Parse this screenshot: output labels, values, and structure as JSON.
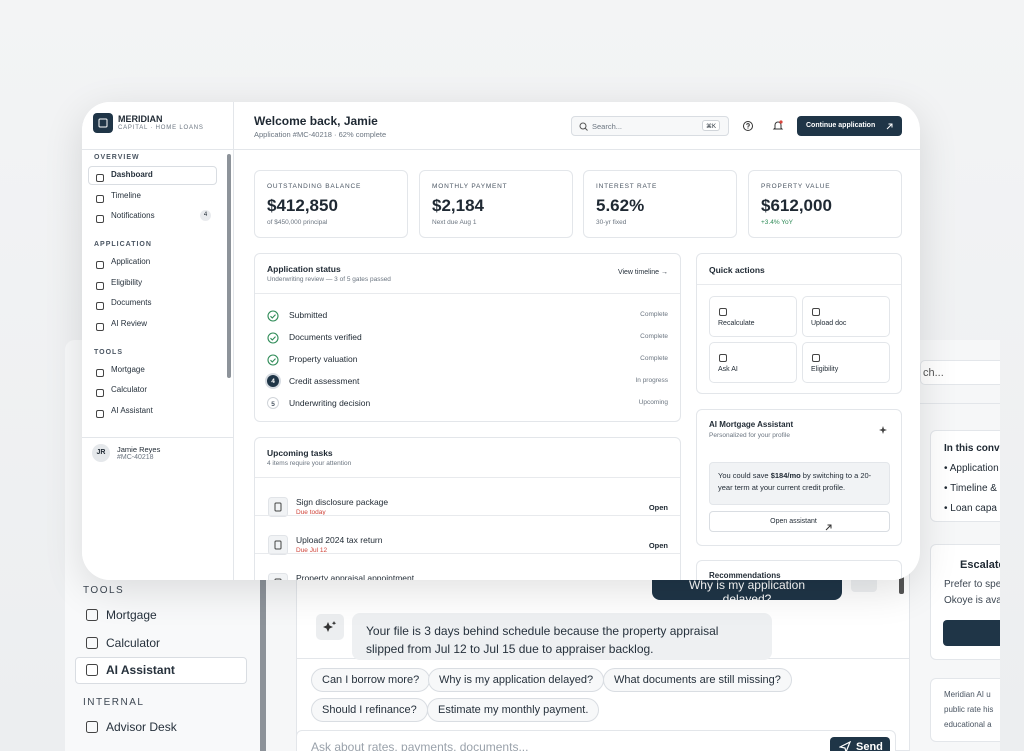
{
  "background_window": {
    "sidebar": [
      {
        "title": "TOOLS",
        "items": [
          "Mortgage",
          "Calculator",
          "AI Assistant"
        ]
      },
      {
        "title": "INTERNAL",
        "items": [
          "Advisor Desk"
        ]
      }
    ],
    "search_placeholder": "ch...",
    "chat": {
      "user_message": "Why is my application delayed?",
      "ai_message": "Your file is 3 days behind schedule because the property appraisal slipped from Jul 12 to Jul 15 due to appraiser backlog.",
      "suggestions": [
        [
          "Can I borrow more?",
          "Why is my application delayed?",
          "What documents are still missing?"
        ],
        [
          "Should I refinance?",
          "Estimate my monthly payment."
        ]
      ],
      "input_placeholder": "Ask about rates, payments, documents...",
      "send": "Send"
    },
    "side_panel": {
      "context_title": "In this conve",
      "context_items": [
        "Application",
        "Timeline &",
        "Loan capa"
      ],
      "escalate_title": "Escalate",
      "escalate_text": [
        "Prefer to spe",
        "Okoye is ava"
      ],
      "disclaimer": [
        "Meridian AI u",
        "public rate his",
        "educational a"
      ]
    }
  },
  "app": {
    "brand": {
      "name": "MERIDIAN",
      "tagline": "CAPITAL · HOME LOANS"
    },
    "nav": [
      {
        "title": "OVERVIEW",
        "items": [
          {
            "label": "Dashboard"
          },
          {
            "label": "Timeline"
          },
          {
            "label": "Notifications",
            "badge": 4
          }
        ]
      },
      {
        "title": "APPLICATION",
        "items": [
          {
            "label": "Application"
          },
          {
            "label": "Eligibility"
          },
          {
            "label": "Documents"
          },
          {
            "label": "AI Review"
          }
        ]
      },
      {
        "title": "TOOLS",
        "items": [
          {
            "label": "Mortgage"
          },
          {
            "label": "Calculator"
          },
          {
            "label": "AI Assistant"
          }
        ]
      }
    ],
    "user": {
      "initials": "JR",
      "name": "Jamie Reyes",
      "id": "#MC-40218"
    },
    "header": {
      "title": "Welcome back, Jamie",
      "subtitle": "Application #MC-40218 · 62% complete",
      "search": "Search...",
      "shortcut": "⌘K",
      "cta": "Continue application"
    },
    "stats": [
      {
        "label": "OUTSTANDING BALANCE",
        "value": "$412,850",
        "note": "of $450,000 principal"
      },
      {
        "label": "MONTHLY PAYMENT",
        "value": "$2,184",
        "note": "Next due Aug 1"
      },
      {
        "label": "INTEREST RATE",
        "value": "5.62%",
        "note": "30-yr fixed"
      },
      {
        "label": "PROPERTY VALUE",
        "value": "$612,000",
        "note": "+3.4% YoY"
      }
    ],
    "status": {
      "title": "Application status",
      "subtitle": "Underwriting review — 3 of 5 gates passed",
      "link": "View timeline →",
      "steps": [
        {
          "label": "Submitted",
          "state": "Complete"
        },
        {
          "label": "Documents verified",
          "state": "Complete"
        },
        {
          "label": "Property valuation",
          "state": "Complete"
        },
        {
          "number": 4,
          "label": "Credit assessment",
          "state": "In progress"
        },
        {
          "number": 5,
          "label": "Underwriting decision",
          "state": "Upcoming"
        }
      ]
    },
    "tasks": {
      "title": "Upcoming tasks",
      "subtitle": "4 items require your attention",
      "items": [
        {
          "title": "Sign disclosure package",
          "due": "Due today",
          "action": "Open"
        },
        {
          "title": "Upload 2024 tax return",
          "due": "Due Jul 12",
          "action": "Open"
        },
        {
          "title": "Property appraisal appointment"
        }
      ]
    },
    "quick_actions": {
      "title": "Quick actions",
      "items": [
        "Recalculate",
        "Upload doc",
        "Ask AI",
        "Eligibility"
      ]
    },
    "assistant": {
      "title": "AI Mortgage Assistant",
      "subtitle": "Personalized for your profile",
      "message": {
        "before": "You could save ",
        "highlight": "$184/mo",
        "after": " by switching to a 20-year term at your current credit profile."
      },
      "button": "Open assistant"
    },
    "recommendations": {
      "title": "Recommendations"
    }
  }
}
